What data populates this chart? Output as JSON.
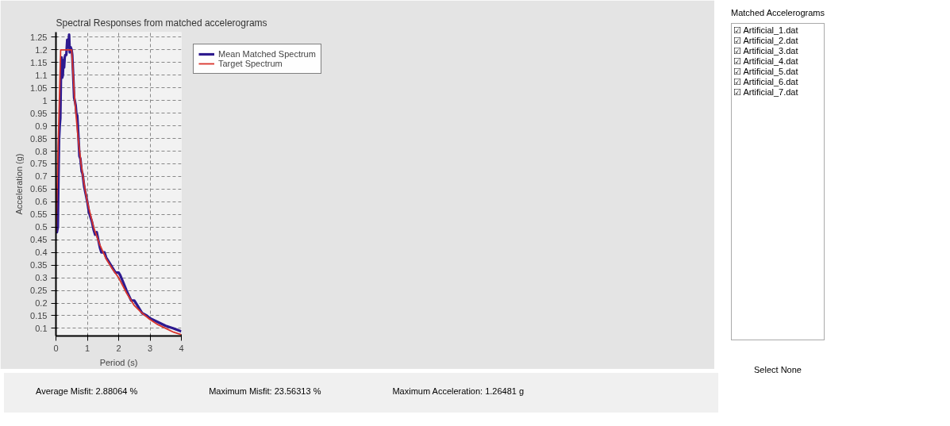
{
  "chart_data": {
    "type": "line",
    "title": "Spectral Responses from matched accelerograms",
    "xlabel": "Period (s)",
    "ylabel": "Acceleration (g)",
    "xlim": [
      0,
      4
    ],
    "ylim": [
      0.07,
      1.27
    ],
    "xticks": [
      0,
      1,
      2,
      3,
      4
    ],
    "yticks": [
      0.1,
      0.15,
      0.2,
      0.25,
      0.3,
      0.35,
      0.4,
      0.45,
      0.5,
      0.55,
      0.6,
      0.65,
      0.7,
      0.75,
      0.8,
      0.85,
      0.9,
      0.95,
      1,
      1.05,
      1.1,
      1.15,
      1.2,
      1.25
    ],
    "grid": true,
    "legend": "right",
    "line_style": "solid",
    "marker": "none",
    "series": [
      {
        "name": "Mean Matched Spectrum",
        "color": "#2e1a8f",
        "x": [
          0,
          0.03,
          0.06,
          0.08,
          0.1,
          0.12,
          0.14,
          0.16,
          0.18,
          0.2,
          0.22,
          0.24,
          0.26,
          0.28,
          0.3,
          0.33,
          0.36,
          0.4,
          0.42,
          0.44,
          0.47,
          0.5,
          0.52,
          0.55,
          0.58,
          0.6,
          0.63,
          0.65,
          0.68,
          0.72,
          0.75,
          0.78,
          0.82,
          0.85,
          0.9,
          0.95,
          1.0,
          1.05,
          1.1,
          1.15,
          1.2,
          1.25,
          1.3,
          1.35,
          1.4,
          1.45,
          1.55,
          1.6,
          1.7,
          1.8,
          1.9,
          2.0,
          2.05,
          2.15,
          2.25,
          2.4,
          2.5,
          2.6,
          2.75,
          2.9,
          3.0,
          3.25,
          3.5,
          3.75,
          4.0
        ],
        "values": [
          0.49,
          0.48,
          0.5,
          0.7,
          0.85,
          0.9,
          0.93,
          1.1,
          1.17,
          1.09,
          1.1,
          1.16,
          1.13,
          1.17,
          1.18,
          1.18,
          1.24,
          1.21,
          1.26,
          1.19,
          1.21,
          1.2,
          1.18,
          1.1,
          1.01,
          1.0,
          0.98,
          0.95,
          0.94,
          0.85,
          0.78,
          0.77,
          0.72,
          0.71,
          0.66,
          0.63,
          0.6,
          0.56,
          0.54,
          0.52,
          0.49,
          0.47,
          0.48,
          0.45,
          0.42,
          0.4,
          0.4,
          0.38,
          0.36,
          0.34,
          0.32,
          0.32,
          0.31,
          0.28,
          0.25,
          0.21,
          0.21,
          0.19,
          0.16,
          0.15,
          0.14,
          0.125,
          0.11,
          0.1,
          0.088
        ]
      },
      {
        "name": "Target Spectrum",
        "color": "#d9342b",
        "x": [
          0,
          0.15,
          0.5,
          0.6,
          0.7,
          0.8,
          0.9,
          1.0,
          1.2,
          1.4,
          1.6,
          1.8,
          2.0,
          2.25,
          2.5,
          2.75,
          3.0,
          3.25,
          3.5,
          3.75,
          4.0
        ],
        "values": [
          0.48,
          1.2,
          1.2,
          1.0,
          0.86,
          0.75,
          0.67,
          0.6,
          0.5,
          0.43,
          0.375,
          0.335,
          0.3,
          0.24,
          0.19,
          0.16,
          0.135,
          0.115,
          0.1,
          0.085,
          0.075
        ]
      }
    ],
    "annotations": [
      "Average Misfit:  2.88064 %",
      "Maximum Misfit:  23.56313 %",
      "Maximum Acceleration:  1.26481 g",
      "Matched Accelerograms",
      "☑ Artificial_1.dat",
      "☑ Artificial_2.dat",
      "☑ Artificial_3.dat",
      "☑ Artificial_4.dat",
      "☑ Artificial_5.dat",
      "☑ Artificial_6.dat",
      "☑ Artificial_7.dat",
      "Select None"
    ]
  }
}
